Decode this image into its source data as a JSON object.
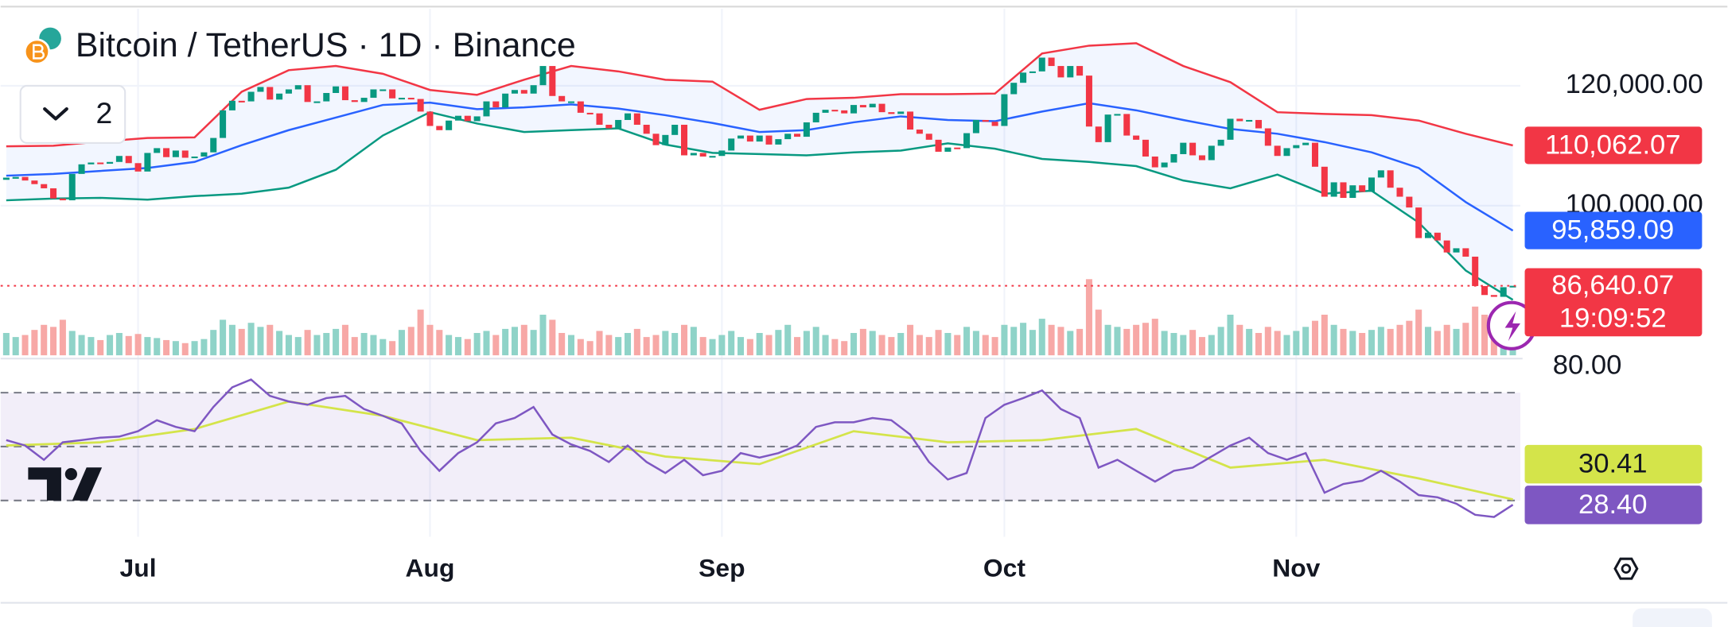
{
  "chart_data": {
    "type": "candlestick",
    "title": "Bitcoin / TetherUS · 1D · Binance",
    "indicator_count": 2,
    "x": [
      0,
      1,
      2,
      3,
      4,
      5,
      6,
      7,
      8,
      9,
      10,
      11,
      12,
      13,
      14,
      15,
      16,
      17,
      18,
      19,
      20,
      21,
      22,
      23,
      24,
      25,
      26,
      27,
      28,
      29,
      30,
      31,
      32,
      33,
      34,
      35,
      36,
      37,
      38,
      39,
      40,
      41,
      42,
      43,
      44,
      45,
      46,
      47,
      48,
      49,
      50,
      51,
      52,
      53,
      54,
      55,
      56,
      57,
      58,
      59,
      60,
      61,
      62,
      63,
      64,
      65,
      66,
      67,
      68,
      69,
      70,
      71,
      72,
      73,
      74,
      75,
      76,
      77,
      78,
      79,
      80,
      81,
      82,
      83,
      84,
      85,
      86,
      87,
      88,
      89,
      90,
      91,
      92,
      93,
      94,
      95,
      96,
      97,
      98,
      99,
      100,
      101,
      102,
      103,
      104,
      105,
      106,
      107,
      108,
      109,
      110,
      111,
      112,
      113,
      114,
      115,
      116,
      117,
      118,
      119,
      120,
      121,
      122,
      123,
      124,
      125,
      126,
      127,
      128,
      129,
      130,
      131,
      132,
      133,
      134,
      135,
      136,
      137,
      138,
      139,
      140,
      141,
      142,
      143,
      144,
      145,
      146,
      147,
      148,
      149,
      150,
      151,
      152,
      153,
      154,
      155,
      156,
      157,
      158,
      159,
      160
    ],
    "close": [
      104500,
      104800,
      104200,
      103600,
      102900,
      101200,
      100900,
      105300,
      106900,
      107200,
      107000,
      107300,
      108300,
      107100,
      105700,
      108800,
      109600,
      108100,
      109200,
      108000,
      108200,
      108900,
      111300,
      115900,
      117500,
      117400,
      119000,
      119800,
      117700,
      118700,
      119400,
      120100,
      117300,
      117400,
      118800,
      119900,
      117600,
      117300,
      118000,
      119400,
      119400,
      117900,
      118000,
      117800,
      115700,
      113300,
      112600,
      114200,
      115000,
      114100,
      114900,
      117400,
      116400,
      118700,
      119300,
      118700,
      120100,
      123300,
      118300,
      117400,
      117400,
      115500,
      115400,
      113500,
      112900,
      114300,
      115400,
      113500,
      112000,
      110100,
      111800,
      113500,
      108400,
      108800,
      108200,
      108300,
      109200,
      111200,
      111700,
      110700,
      111700,
      110200,
      111100,
      112000,
      111500,
      113900,
      115500,
      116000,
      115900,
      115400,
      116800,
      116400,
      117000,
      115600,
      115300,
      115700,
      112700,
      112000,
      111000,
      109000,
      109700,
      109600,
      112100,
      114300,
      114000,
      113300,
      118600,
      120500,
      122200,
      122400,
      124700,
      123300,
      121400,
      123300,
      121700,
      113200,
      110600,
      115200,
      115300,
      111700,
      111000,
      108200,
      106400,
      107200,
      108600,
      110500,
      108400,
      107600,
      110000,
      111000,
      114500,
      114100,
      114300,
      112900,
      110000,
      108300,
      109600,
      110100,
      110500,
      106500,
      101500,
      103900,
      101300,
      103400,
      102300,
      104700,
      105900,
      103000,
      101500,
      99700,
      94600,
      95500,
      94200,
      92200,
      92900,
      91500,
      86600,
      85100,
      84800,
      86400,
      86640.07
    ],
    "volume": [
      22,
      18,
      20,
      25,
      30,
      28,
      35,
      24,
      20,
      18,
      15,
      20,
      22,
      19,
      21,
      18,
      17,
      15,
      14,
      12,
      14,
      16,
      25,
      35,
      30,
      26,
      32,
      28,
      30,
      24,
      20,
      18,
      25,
      20,
      22,
      26,
      30,
      18,
      22,
      20,
      16,
      14,
      25,
      28,
      45,
      30,
      25,
      20,
      18,
      16,
      22,
      24,
      20,
      26,
      28,
      30,
      25,
      40,
      35,
      22,
      20,
      16,
      14,
      24,
      20,
      18,
      22,
      26,
      18,
      20,
      24,
      22,
      30,
      28,
      18,
      16,
      20,
      24,
      18,
      16,
      22,
      20,
      25,
      30,
      18,
      24,
      28,
      20,
      16,
      14,
      22,
      26,
      24,
      20,
      18,
      22,
      30,
      20,
      18,
      25,
      22,
      20,
      28,
      24,
      20,
      18,
      30,
      28,
      32,
      25,
      36,
      30,
      28,
      24,
      26,
      75,
      45,
      30,
      28,
      26,
      30,
      32,
      36,
      24,
      22,
      20,
      25,
      18,
      20,
      28,
      40,
      30,
      26,
      22,
      28,
      24,
      20,
      24,
      28,
      34,
      40,
      30,
      26,
      24,
      22,
      25,
      28,
      26,
      30,
      34,
      45,
      28,
      24,
      30,
      26,
      32,
      48,
      40,
      36,
      22,
      18
    ],
    "volume_ylim": [
      0,
      350
    ],
    "up_color": "#089981",
    "down_color": "#f23645",
    "volume_up_color": "#8fd3c8",
    "volume_down_color": "#f7a8a6",
    "xlim": [
      -0.6,
      160.8
    ],
    "xticks": [
      {
        "value": 14,
        "label": "Jul"
      },
      {
        "value": 45,
        "label": "Aug"
      },
      {
        "value": 76,
        "label": "Sep"
      },
      {
        "value": 106,
        "label": "Oct"
      },
      {
        "value": 137,
        "label": "Nov"
      }
    ],
    "ylim": [
      74680,
      134310
    ],
    "yticks": [
      {
        "value": 100000,
        "label": "100,000.00"
      },
      {
        "value": 120000,
        "label": "120,000.00"
      }
    ],
    "grid": true,
    "last_price": {
      "value": 86640.07,
      "label": "86,640.07"
    },
    "countdown": "19:09:52",
    "bands": {
      "x": [
        0,
        5,
        10,
        15,
        20,
        25,
        30,
        35,
        40,
        45,
        50,
        55,
        60,
        65,
        70,
        75,
        80,
        85,
        90,
        95,
        100,
        105,
        110,
        115,
        120,
        125,
        130,
        135,
        140,
        145,
        150,
        155,
        160
      ],
      "fill": "#2962ff",
      "series": [
        {
          "color": "#f23645",
          "values": [
            109900,
            110000,
            110700,
            111300,
            111400,
            119000,
            122600,
            123300,
            122000,
            119300,
            118500,
            121000,
            123300,
            122400,
            121000,
            120700,
            116000,
            117800,
            118000,
            118600,
            118600,
            118700,
            125400,
            126700,
            127100,
            123300,
            120600,
            115600,
            115300,
            115100,
            114200,
            112000,
            110062.07
          ],
          "last_label": {
            "value": 110062.07,
            "label": "110,062.07"
          }
        },
        {
          "color": "#2962ff",
          "values": [
            105000,
            105300,
            105800,
            106300,
            107300,
            110100,
            112600,
            114700,
            116800,
            117200,
            116100,
            116400,
            116900,
            116200,
            115100,
            113800,
            112300,
            112600,
            113900,
            114900,
            114300,
            114100,
            115700,
            117100,
            115900,
            114300,
            112800,
            112000,
            110600,
            108900,
            106300,
            100600,
            95859.09
          ],
          "last_label": {
            "value": 95859.09,
            "label": "95,859.09"
          }
        },
        {
          "color": "#089981",
          "values": [
            100900,
            101200,
            101300,
            101000,
            101600,
            102000,
            103000,
            106000,
            111700,
            115600,
            113700,
            112300,
            112600,
            112900,
            110200,
            108800,
            108600,
            108400,
            108900,
            109200,
            110400,
            109500,
            107800,
            107300,
            106600,
            104200,
            102900,
            105200,
            102000,
            102500,
            97200,
            89200,
            84300
          ]
        }
      ]
    },
    "rsi": {
      "x": [
        0,
        2,
        4,
        6,
        8,
        10,
        12,
        14,
        16,
        18,
        20,
        22,
        24,
        26,
        28,
        30,
        32,
        34,
        36,
        38,
        40,
        42,
        44,
        46,
        48,
        50,
        52,
        54,
        56,
        58,
        60,
        62,
        64,
        66,
        68,
        70,
        72,
        74,
        76,
        78,
        80,
        82,
        84,
        86,
        88,
        90,
        92,
        94,
        96,
        98,
        100,
        102,
        104,
        106,
        108,
        110,
        112,
        114,
        116,
        118,
        120,
        122,
        124,
        126,
        128,
        130,
        132,
        134,
        136,
        138,
        140,
        142,
        144,
        146,
        148,
        150,
        152,
        154,
        156,
        158,
        160
      ],
      "values": [
        52.4,
        50.4,
        45.1,
        51.6,
        52.4,
        53.3,
        53.7,
        55.7,
        59.8,
        57.3,
        55.7,
        64.7,
        72,
        74.9,
        68.8,
        66.7,
        65.5,
        68,
        68.8,
        63.9,
        61.4,
        58.6,
        48.4,
        41,
        47.6,
        51.6,
        58.6,
        60.6,
        64.7,
        54.5,
        50.8,
        48.4,
        44.3,
        50.4,
        44.3,
        40.2,
        45.1,
        39.4,
        41,
        47.6,
        45.9,
        47.6,
        50.4,
        57.3,
        59,
        59,
        60.6,
        59.8,
        54.5,
        44.3,
        37.8,
        40.2,
        60.6,
        65.5,
        68,
        70.8,
        63.9,
        60.6,
        42.2,
        45.1,
        41,
        37,
        41,
        42.2,
        46.3,
        50.4,
        53.3,
        47.6,
        45.1,
        47.6,
        32.9,
        36.1,
        37.3,
        41,
        37,
        32,
        31.2,
        28.8,
        24.7,
        23.9,
        28.4
      ],
      "color": "#7e57c2",
      "value_label": {
        "value": 28.4,
        "label": "28.40"
      },
      "ma": {
        "x": [
          0,
          10,
          20,
          30,
          40,
          50,
          60,
          70,
          80,
          90,
          100,
          110,
          120,
          130,
          140,
          150,
          160
        ],
        "values": [
          50.4,
          51.6,
          56.5,
          66.7,
          61.4,
          52.4,
          53.3,
          46.3,
          43.5,
          55.7,
          51.6,
          52.4,
          56.5,
          42.2,
          45.1,
          38.2,
          30.41
        ],
        "color": "#d4e44a",
        "value_label": {
          "value": 30.41,
          "label": "30.41"
        }
      },
      "ylim": [
        19.8,
        81
      ],
      "yticks": [
        {
          "value": 80,
          "label": "80.00"
        }
      ],
      "levels": [
        70,
        50,
        30
      ]
    }
  }
}
